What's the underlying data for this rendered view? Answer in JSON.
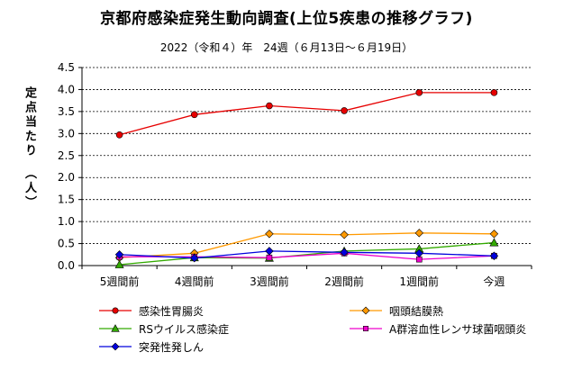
{
  "chart_data": {
    "type": "line",
    "title": "京都府感染症発生動向調査(上位5疾患の推移グラフ)",
    "subtitle": "2022（令和４）年　24週（６月13日～６月19日）",
    "ylabel": "定点当たり　（人）",
    "xlabel": "",
    "categories": [
      "5週間前",
      "4週間前",
      "3週間前",
      "2週間前",
      "1週間前",
      "今週"
    ],
    "ylim": [
      0,
      4.5
    ],
    "yticks": [
      "0.0",
      "0.5",
      "1.0",
      "1.5",
      "2.0",
      "2.5",
      "3.0",
      "3.5",
      "4.0",
      "4.5"
    ],
    "grid": "horizontal-dashed",
    "legend_position": "bottom",
    "series": [
      {
        "name": "感染性胃腸炎",
        "color": "#e60000",
        "marker": "circle",
        "values": [
          2.97,
          3.43,
          3.63,
          3.52,
          3.93,
          3.93
        ]
      },
      {
        "name": "咽頭結膜熱",
        "color": "#ff9900",
        "marker": "diamond",
        "values": [
          0.18,
          0.28,
          0.72,
          0.7,
          0.74,
          0.72
        ]
      },
      {
        "name": "RSウイルス感染症",
        "color": "#33aa00",
        "marker": "triangle",
        "values": [
          0.02,
          0.18,
          0.17,
          0.33,
          0.38,
          0.52
        ]
      },
      {
        "name": "A群溶血性レンサ球菌咽頭炎",
        "color": "#ee00cc",
        "marker": "square",
        "values": [
          0.2,
          0.2,
          0.18,
          0.28,
          0.14,
          0.22
        ]
      },
      {
        "name": "突発性発しん",
        "color": "#0000dd",
        "marker": "diamond",
        "values": [
          0.25,
          0.17,
          0.33,
          0.3,
          0.28,
          0.22
        ]
      }
    ]
  }
}
